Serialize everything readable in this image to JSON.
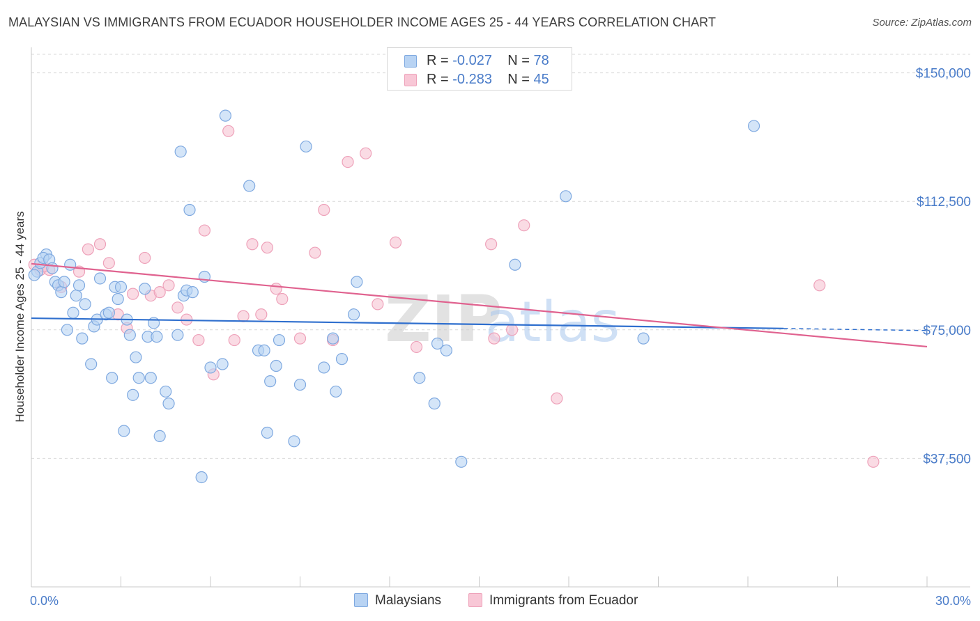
{
  "title": "MALAYSIAN VS IMMIGRANTS FROM ECUADOR HOUSEHOLDER INCOME AGES 25 - 44 YEARS CORRELATION CHART",
  "source": "Source: ZipAtlas.com",
  "watermark": {
    "zip": "ZIP",
    "atlas": "atlas"
  },
  "legend": {
    "r_label": "R =",
    "n_label": "N =",
    "rows": [
      {
        "name": "Malaysians",
        "r": "-0.027",
        "n": "78"
      },
      {
        "name": "Immigrants from Ecuador",
        "r": "-0.283",
        "n": "45"
      }
    ]
  },
  "colors": {
    "malaysians_fill": "#b8d3f3",
    "malaysians_stroke": "#7fa9e0",
    "malaysians_line": "#2f6fce",
    "ecuador_fill": "#f8c7d6",
    "ecuador_stroke": "#eea2ba",
    "ecuador_line": "#e0628f",
    "tick": "#4a7cc9",
    "grid": "#d9d9d9"
  },
  "chart_data": {
    "type": "scatter",
    "title": "MALAYSIAN VS IMMIGRANTS FROM ECUADOR HOUSEHOLDER INCOME AGES 25 - 44 YEARS CORRELATION CHART",
    "xlabel": "",
    "ylabel": "Householder Income Ages 25 - 44 years",
    "xlim": [
      0,
      30
    ],
    "ylim": [
      0,
      155000
    ],
    "x_ticks": [
      "0.0%",
      "30.0%"
    ],
    "y_ticks": [
      {
        "value": 37500,
        "label": "$37,500"
      },
      {
        "value": 75000,
        "label": "$75,000"
      },
      {
        "value": 112500,
        "label": "$112,500"
      },
      {
        "value": 150000,
        "label": "$150,000"
      }
    ],
    "series": [
      {
        "name": "Malaysians",
        "points": [
          [
            0.2,
            92000
          ],
          [
            0.3,
            94500
          ],
          [
            0.5,
            97000
          ],
          [
            0.4,
            96000
          ],
          [
            0.6,
            95500
          ],
          [
            0.8,
            89000
          ],
          [
            0.9,
            88000
          ],
          [
            1.0,
            86000
          ],
          [
            1.1,
            89000
          ],
          [
            1.3,
            94000
          ],
          [
            1.5,
            85000
          ],
          [
            1.6,
            88000
          ],
          [
            1.8,
            82500
          ],
          [
            1.2,
            75000
          ],
          [
            1.7,
            72500
          ],
          [
            2.0,
            65000
          ],
          [
            2.1,
            76000
          ],
          [
            2.2,
            78000
          ],
          [
            2.3,
            90000
          ],
          [
            2.5,
            79500
          ],
          [
            2.6,
            80000
          ],
          [
            2.7,
            61000
          ],
          [
            2.8,
            87500
          ],
          [
            2.9,
            84000
          ],
          [
            3.0,
            87500
          ],
          [
            3.1,
            45500
          ],
          [
            3.2,
            78000
          ],
          [
            3.3,
            73500
          ],
          [
            3.4,
            56000
          ],
          [
            3.5,
            67000
          ],
          [
            3.6,
            61000
          ],
          [
            3.8,
            87000
          ],
          [
            3.9,
            73000
          ],
          [
            4.0,
            61000
          ],
          [
            4.1,
            77000
          ],
          [
            4.2,
            73000
          ],
          [
            4.3,
            44000
          ],
          [
            4.5,
            57000
          ],
          [
            4.6,
            53500
          ],
          [
            4.9,
            73500
          ],
          [
            5.0,
            127000
          ],
          [
            5.1,
            85000
          ],
          [
            5.2,
            86500
          ],
          [
            5.3,
            110000
          ],
          [
            5.4,
            86000
          ],
          [
            5.7,
            32000
          ],
          [
            5.8,
            90500
          ],
          [
            6.0,
            64000
          ],
          [
            6.4,
            65000
          ],
          [
            6.5,
            137500
          ],
          [
            7.3,
            117000
          ],
          [
            7.6,
            69000
          ],
          [
            7.8,
            69000
          ],
          [
            7.9,
            45000
          ],
          [
            8.0,
            60000
          ],
          [
            8.2,
            64500
          ],
          [
            8.3,
            72000
          ],
          [
            8.8,
            42500
          ],
          [
            9.0,
            59000
          ],
          [
            9.2,
            128500
          ],
          [
            9.8,
            64000
          ],
          [
            10.1,
            72500
          ],
          [
            10.2,
            57000
          ],
          [
            10.4,
            66500
          ],
          [
            10.8,
            79500
          ],
          [
            10.9,
            89000
          ],
          [
            13.0,
            61000
          ],
          [
            13.5,
            53500
          ],
          [
            13.6,
            71000
          ],
          [
            13.9,
            69000
          ],
          [
            14.4,
            36500
          ],
          [
            16.2,
            94000
          ],
          [
            17.9,
            114000
          ],
          [
            20.5,
            72500
          ],
          [
            24.2,
            134500
          ],
          [
            0.1,
            91000
          ],
          [
            0.7,
            93000
          ],
          [
            1.4,
            80000
          ]
        ]
      },
      {
        "name": "Immigrants from Ecuador",
        "points": [
          [
            0.1,
            94000
          ],
          [
            0.3,
            92500
          ],
          [
            0.6,
            92500
          ],
          [
            1.0,
            87500
          ],
          [
            1.6,
            92000
          ],
          [
            1.9,
            98500
          ],
          [
            2.3,
            100000
          ],
          [
            2.6,
            94500
          ],
          [
            2.9,
            79500
          ],
          [
            3.2,
            75500
          ],
          [
            3.4,
            85500
          ],
          [
            3.8,
            96000
          ],
          [
            4.0,
            85000
          ],
          [
            4.3,
            86000
          ],
          [
            4.6,
            88000
          ],
          [
            4.9,
            81500
          ],
          [
            5.2,
            78000
          ],
          [
            5.6,
            72000
          ],
          [
            5.8,
            104000
          ],
          [
            6.1,
            62000
          ],
          [
            6.6,
            133000
          ],
          [
            6.8,
            72000
          ],
          [
            7.1,
            79000
          ],
          [
            7.4,
            100000
          ],
          [
            7.7,
            79500
          ],
          [
            7.9,
            99000
          ],
          [
            8.2,
            87000
          ],
          [
            8.4,
            84000
          ],
          [
            9.0,
            72500
          ],
          [
            9.5,
            97500
          ],
          [
            9.8,
            110000
          ],
          [
            10.1,
            72000
          ],
          [
            10.6,
            124000
          ],
          [
            11.2,
            126500
          ],
          [
            11.6,
            82500
          ],
          [
            12.2,
            100500
          ],
          [
            12.9,
            70000
          ],
          [
            15.4,
            100000
          ],
          [
            15.5,
            72500
          ],
          [
            16.1,
            75000
          ],
          [
            16.5,
            105500
          ],
          [
            17.6,
            55000
          ],
          [
            26.4,
            88000
          ],
          [
            28.2,
            36500
          ],
          [
            0.4,
            93500
          ]
        ]
      }
    ],
    "trend_lines": [
      {
        "series": "Malaysians",
        "x": [
          0,
          25.2
        ],
        "y": [
          78400,
          75400
        ],
        "dashed_extension_to": 30,
        "dashed_end_y": 74800
      },
      {
        "series": "Immigrants from Ecuador",
        "x": [
          0,
          30
        ],
        "y": [
          94300,
          70100
        ]
      }
    ]
  }
}
